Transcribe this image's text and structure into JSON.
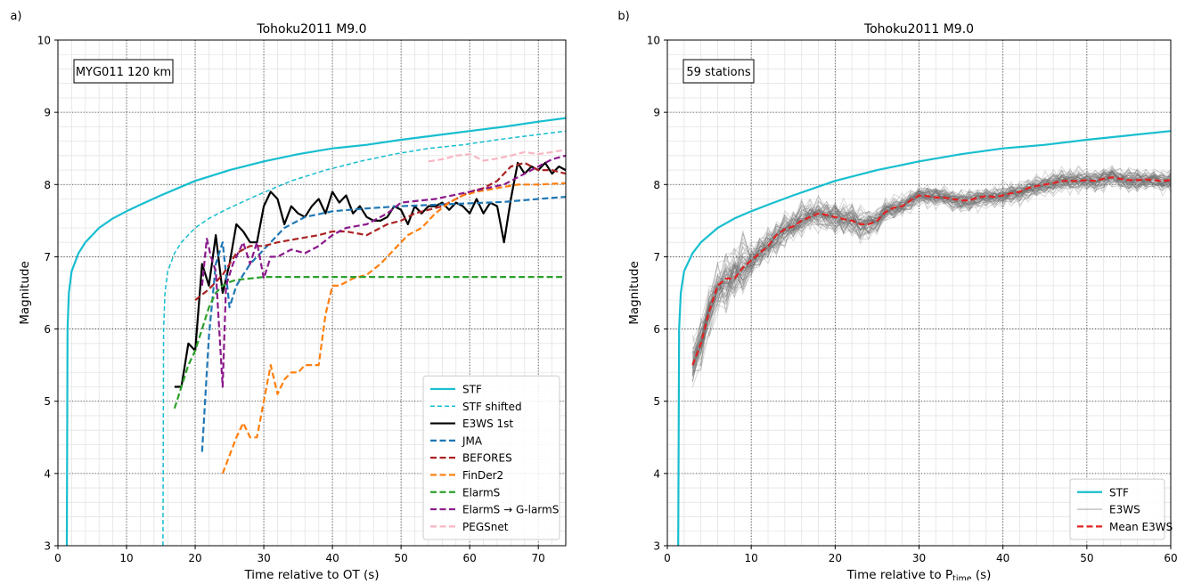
{
  "chart_data": [
    {
      "type": "line",
      "panel_label": "a)",
      "title": "Tohoku2011 M9.0",
      "xlabel": "Time relative to OT (s)",
      "ylabel": "Magnitude",
      "xlim": [
        0,
        74
      ],
      "ylim": [
        3,
        10
      ],
      "xticks": [
        0,
        10,
        20,
        30,
        40,
        50,
        60,
        70
      ],
      "yticks": [
        3,
        4,
        5,
        6,
        7,
        8,
        9,
        10
      ],
      "grid": "major dotted, minor light",
      "annotation": "MYG011 120 km",
      "legend_position": "lower-right",
      "series": [
        {
          "name": "STF",
          "color": "#17becf",
          "dash": "solid",
          "x": [
            1.3,
            1.4,
            1.6,
            2,
            3,
            4,
            6,
            8,
            10,
            12,
            15,
            18,
            20,
            25,
            30,
            35,
            40,
            45,
            50,
            55,
            60,
            65,
            70,
            74
          ],
          "y": [
            3.0,
            6.0,
            6.5,
            6.8,
            7.05,
            7.2,
            7.4,
            7.53,
            7.63,
            7.72,
            7.85,
            7.97,
            8.05,
            8.2,
            8.32,
            8.42,
            8.5,
            8.55,
            8.62,
            8.68,
            8.74,
            8.8,
            8.87,
            8.92
          ]
        },
        {
          "name": "STF shifted",
          "color": "#17becf",
          "dash": "thin-dashed",
          "x": [
            15.3,
            15.4,
            15.6,
            16,
            17,
            18,
            20,
            22,
            24,
            26,
            29,
            32,
            34,
            39,
            44,
            49,
            54,
            59,
            64,
            69,
            74
          ],
          "y": [
            3.0,
            6.0,
            6.5,
            6.8,
            7.05,
            7.2,
            7.4,
            7.53,
            7.63,
            7.72,
            7.85,
            7.97,
            8.05,
            8.2,
            8.32,
            8.42,
            8.5,
            8.55,
            8.62,
            8.68,
            8.74
          ]
        },
        {
          "name": "E3WS 1st",
          "color": "#000000",
          "dash": "solid",
          "x": [
            17,
            18,
            19,
            20,
            21,
            22,
            23,
            24,
            25,
            26,
            27,
            28,
            29,
            30,
            31,
            32,
            33,
            34,
            35,
            36,
            37,
            38,
            39,
            40,
            41,
            42,
            43,
            44,
            45,
            46,
            47,
            48,
            49,
            50,
            51,
            52,
            53,
            54,
            55,
            56,
            57,
            58,
            59,
            60,
            61,
            62,
            63,
            64,
            65,
            66,
            67,
            68,
            69,
            70,
            71,
            72,
            73,
            74
          ],
          "y": [
            5.2,
            5.2,
            5.8,
            5.7,
            6.9,
            6.6,
            7.3,
            6.5,
            6.9,
            7.45,
            7.35,
            7.2,
            7.2,
            7.7,
            7.9,
            7.8,
            7.45,
            7.7,
            7.6,
            7.55,
            7.7,
            7.8,
            7.6,
            7.9,
            7.75,
            7.85,
            7.6,
            7.7,
            7.55,
            7.5,
            7.5,
            7.55,
            7.7,
            7.65,
            7.45,
            7.7,
            7.6,
            7.7,
            7.7,
            7.75,
            7.65,
            7.75,
            7.7,
            7.6,
            7.8,
            7.6,
            7.75,
            7.7,
            7.2,
            7.8,
            8.3,
            8.15,
            8.25,
            8.2,
            8.3,
            8.15,
            8.25,
            8.2
          ]
        },
        {
          "name": "JMA",
          "color": "#1f77b4",
          "dash": "dashed",
          "x": [
            21,
            22,
            23,
            24,
            25,
            26,
            28,
            30,
            33,
            36,
            40,
            45,
            50,
            55,
            60,
            65,
            70,
            74
          ],
          "y": [
            4.3,
            5.9,
            6.9,
            7.2,
            6.3,
            6.6,
            6.9,
            7.1,
            7.4,
            7.55,
            7.63,
            7.67,
            7.7,
            7.72,
            7.74,
            7.76,
            7.8,
            7.83
          ]
        },
        {
          "name": "BEFORES",
          "color": "#aa2222",
          "dash": "dashed",
          "x": [
            20,
            22,
            24,
            26,
            28,
            30,
            32,
            35,
            38,
            40,
            42,
            45,
            48,
            50,
            52,
            54,
            56,
            58,
            60,
            62,
            64,
            66,
            68,
            70,
            72,
            74
          ],
          "y": [
            6.4,
            6.55,
            6.75,
            7.05,
            7.15,
            7.15,
            7.2,
            7.25,
            7.3,
            7.35,
            7.35,
            7.3,
            7.45,
            7.5,
            7.6,
            7.65,
            7.7,
            7.8,
            7.9,
            7.95,
            8.05,
            8.25,
            8.3,
            8.2,
            8.2,
            8.15
          ]
        },
        {
          "name": "FinDer2",
          "color": "#ff7f0e",
          "dash": "dashed",
          "x": [
            24,
            25,
            26,
            27,
            28,
            29,
            30,
            31,
            32,
            33,
            34,
            35,
            36,
            38,
            39,
            40,
            41,
            43,
            45,
            47,
            49,
            51,
            53,
            55,
            57,
            59,
            61,
            64,
            67,
            70,
            74
          ],
          "y": [
            4.0,
            4.25,
            4.5,
            4.7,
            4.5,
            4.5,
            5.0,
            5.5,
            5.1,
            5.3,
            5.4,
            5.4,
            5.5,
            5.5,
            6.2,
            6.6,
            6.6,
            6.7,
            6.75,
            6.9,
            7.1,
            7.3,
            7.4,
            7.6,
            7.75,
            7.85,
            7.9,
            7.95,
            8.0,
            8.0,
            8.02
          ]
        },
        {
          "name": "ElarmS",
          "color": "#2ca02c",
          "dash": "dashed",
          "x": [
            17,
            18,
            19,
            20,
            21,
            22,
            23,
            24,
            25,
            26,
            28,
            30,
            40,
            50,
            60,
            74
          ],
          "y": [
            4.9,
            5.2,
            5.5,
            5.7,
            6.0,
            6.3,
            6.5,
            6.6,
            6.65,
            6.68,
            6.7,
            6.72,
            6.72,
            6.72,
            6.72,
            6.72
          ]
        },
        {
          "name": "ElarmS → G-larmS",
          "color": "#8b1a8b",
          "dash": "dashed",
          "x": [
            21,
            21.7,
            22.3,
            23,
            24,
            24.5,
            25.5,
            27,
            28,
            29,
            30,
            31,
            32,
            34,
            36,
            38,
            40,
            42,
            45,
            48,
            50,
            55,
            60,
            65,
            70,
            72,
            74
          ],
          "y": [
            6.6,
            7.25,
            7.0,
            6.8,
            5.2,
            6.6,
            6.9,
            7.2,
            6.9,
            7.2,
            6.7,
            7.0,
            7.0,
            7.1,
            7.05,
            7.15,
            7.3,
            7.4,
            7.45,
            7.6,
            7.75,
            7.8,
            7.9,
            8.0,
            8.25,
            8.35,
            8.4
          ]
        },
        {
          "name": "PEGSnet",
          "color": "#f7b6c2",
          "dash": "dashed",
          "x": [
            54,
            56,
            58,
            60,
            62,
            64,
            66,
            68,
            70,
            72,
            74
          ],
          "y": [
            8.32,
            8.35,
            8.4,
            8.42,
            8.33,
            8.36,
            8.4,
            8.45,
            8.42,
            8.45,
            8.48
          ]
        }
      ]
    },
    {
      "type": "line",
      "panel_label": "b)",
      "title": "Tohoku2011 M9.0",
      "xlabel": "Time relative to P",
      "xlabel_sub": "time",
      "xlabel_suffix": " (s)",
      "ylabel": "Magnitude",
      "xlim": [
        0,
        60
      ],
      "ylim": [
        3,
        10
      ],
      "xticks": [
        0,
        10,
        20,
        30,
        40,
        50,
        60
      ],
      "yticks": [
        3,
        4,
        5,
        6,
        7,
        8,
        9,
        10
      ],
      "grid": "major dotted, minor light",
      "annotation": "59 stations",
      "legend_position": "lower-right",
      "station_count": 59,
      "series": [
        {
          "name": "STF",
          "color": "#17becf",
          "dash": "solid",
          "x": [
            1.3,
            1.4,
            1.6,
            2,
            3,
            4,
            6,
            8,
            10,
            12,
            15,
            18,
            20,
            25,
            30,
            35,
            40,
            45,
            50,
            55,
            60
          ],
          "y": [
            3.0,
            6.0,
            6.5,
            6.8,
            7.05,
            7.2,
            7.4,
            7.53,
            7.63,
            7.72,
            7.85,
            7.97,
            8.05,
            8.2,
            8.32,
            8.42,
            8.5,
            8.55,
            8.62,
            8.68,
            8.74
          ]
        },
        {
          "name": "E3WS",
          "color": "#7f7f7f",
          "dash": "thin-solid",
          "x": [
            3,
            4,
            5,
            6,
            7,
            8,
            9,
            10,
            11,
            12,
            13,
            14,
            15,
            16,
            17,
            18,
            19,
            20,
            21,
            22,
            23,
            24,
            25,
            26,
            27,
            28,
            29,
            30,
            31,
            32,
            33,
            34,
            35,
            36,
            37,
            38,
            39,
            40,
            41,
            42,
            43,
            44,
            45,
            46,
            47,
            48,
            49,
            50,
            51,
            52,
            53,
            54,
            55,
            56,
            57,
            58,
            59,
            60
          ],
          "y": [
            5.5,
            5.8,
            6.25,
            6.6,
            6.7,
            6.7,
            6.85,
            6.95,
            7.05,
            7.15,
            7.3,
            7.38,
            7.42,
            7.5,
            7.55,
            7.6,
            7.58,
            7.55,
            7.52,
            7.5,
            7.45,
            7.45,
            7.5,
            7.62,
            7.68,
            7.7,
            7.78,
            7.85,
            7.84,
            7.82,
            7.82,
            7.8,
            7.78,
            7.78,
            7.82,
            7.84,
            7.83,
            7.85,
            7.88,
            7.9,
            7.95,
            7.98,
            8.0,
            8.02,
            8.05,
            8.05,
            8.05,
            8.06,
            8.05,
            8.08,
            8.1,
            8.08,
            8.06,
            8.06,
            8.07,
            8.06,
            8.05,
            8.06
          ]
        },
        {
          "name": "Mean E3WS",
          "color": "#e32222",
          "dash": "dashed",
          "x": [
            3,
            4,
            5,
            6,
            7,
            8,
            9,
            10,
            11,
            12,
            13,
            14,
            15,
            16,
            17,
            18,
            19,
            20,
            21,
            22,
            23,
            24,
            25,
            26,
            27,
            28,
            29,
            30,
            31,
            32,
            33,
            34,
            35,
            36,
            37,
            38,
            39,
            40,
            41,
            42,
            43,
            44,
            45,
            46,
            47,
            48,
            49,
            50,
            51,
            52,
            53,
            54,
            55,
            56,
            57,
            58,
            59,
            60
          ],
          "y": [
            5.5,
            5.8,
            6.25,
            6.6,
            6.7,
            6.7,
            6.85,
            6.95,
            7.05,
            7.15,
            7.3,
            7.38,
            7.42,
            7.5,
            7.55,
            7.6,
            7.58,
            7.55,
            7.52,
            7.5,
            7.45,
            7.45,
            7.5,
            7.62,
            7.68,
            7.7,
            7.78,
            7.85,
            7.84,
            7.82,
            7.82,
            7.8,
            7.78,
            7.78,
            7.82,
            7.84,
            7.83,
            7.85,
            7.88,
            7.9,
            7.95,
            7.98,
            8.0,
            8.02,
            8.05,
            8.05,
            8.05,
            8.06,
            8.05,
            8.08,
            8.1,
            8.08,
            8.06,
            8.06,
            8.07,
            8.06,
            8.05,
            8.06
          ]
        }
      ]
    }
  ]
}
